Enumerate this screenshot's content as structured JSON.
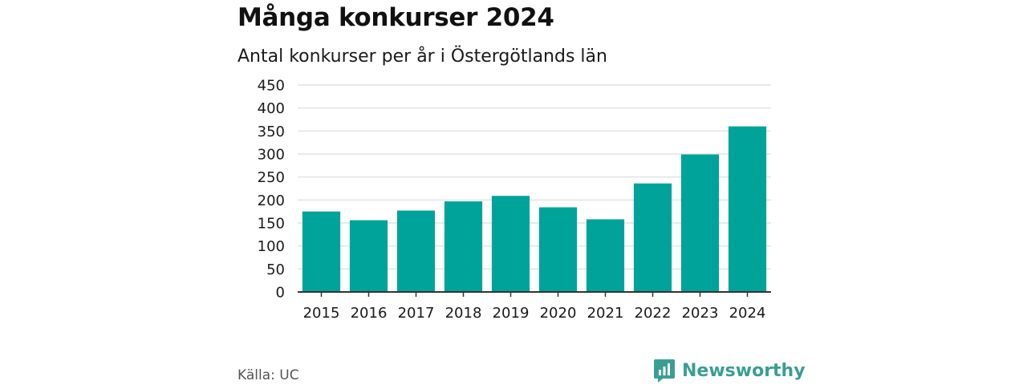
{
  "title": "Många konkurser 2024",
  "subtitle": "Antal konkurser per år i Östergötlands län",
  "source": "Källa: UC",
  "brand": {
    "name": "Newsworthy",
    "icon": "newsworthy-logo-icon",
    "color": "#3a9e95"
  },
  "chart_data": {
    "type": "bar",
    "categories": [
      "2015",
      "2016",
      "2017",
      "2018",
      "2019",
      "2020",
      "2021",
      "2022",
      "2023",
      "2024"
    ],
    "values": [
      175,
      156,
      177,
      197,
      209,
      184,
      158,
      236,
      299,
      360
    ],
    "ylim": [
      0,
      450
    ],
    "yticks": [
      "0",
      "50",
      "100",
      "150",
      "200",
      "250",
      "300",
      "350",
      "400",
      "450"
    ],
    "xlabel": "",
    "ylabel": "",
    "grid": true,
    "bar_color": "#00a39a"
  }
}
